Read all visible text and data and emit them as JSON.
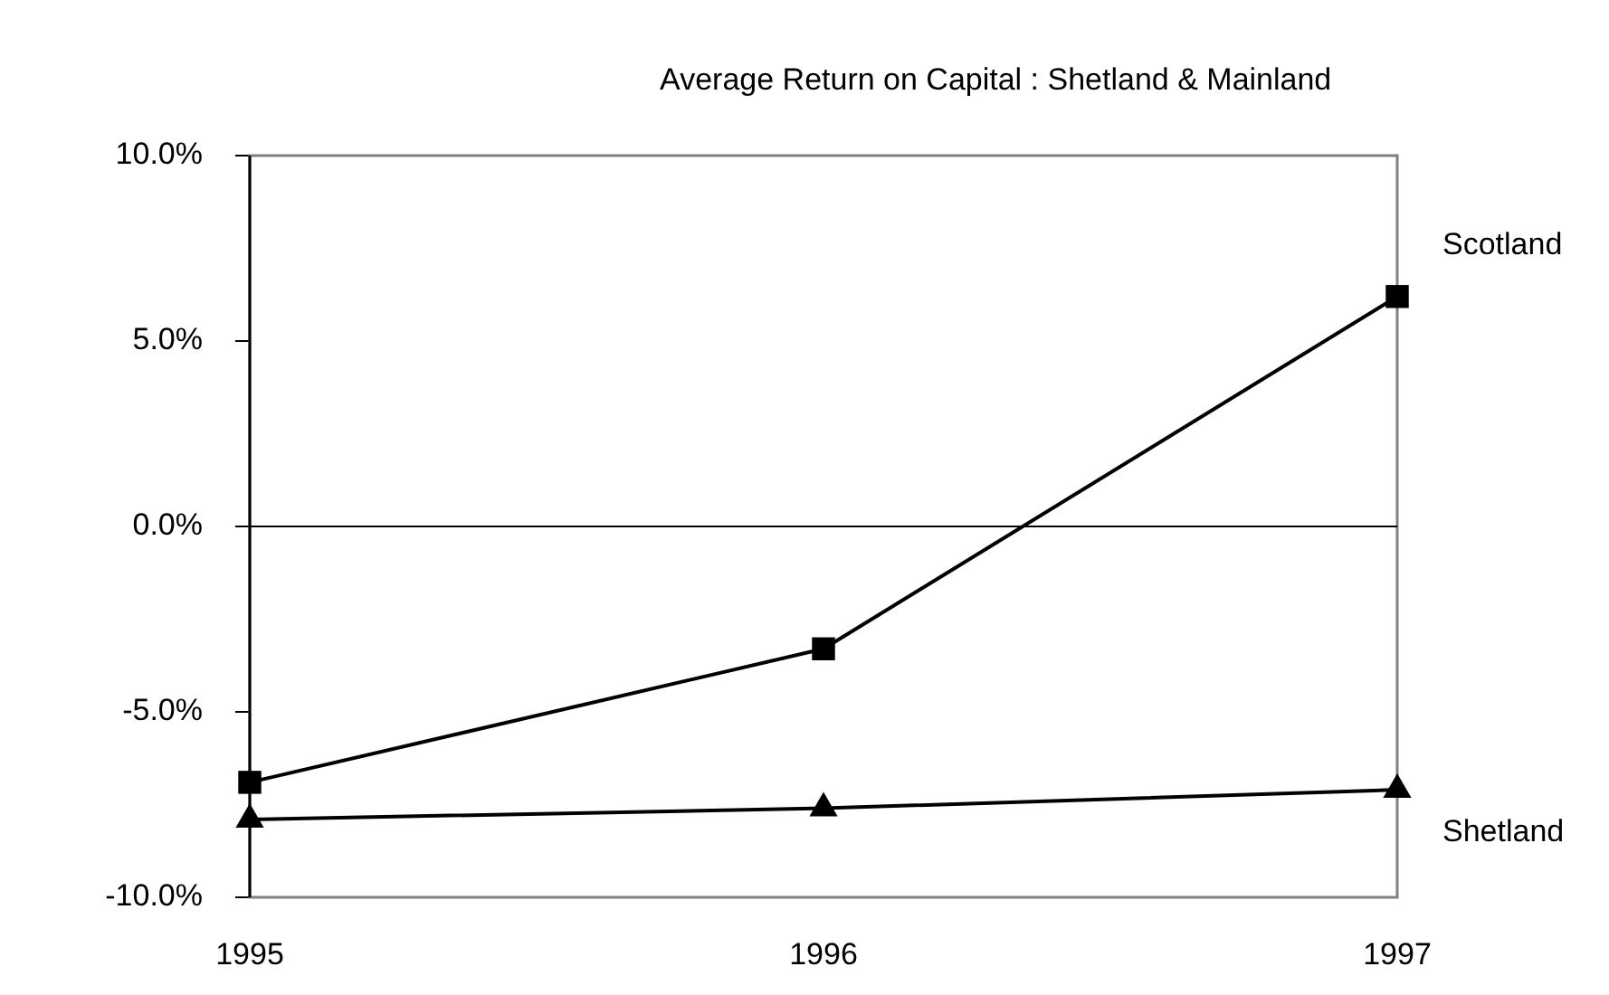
{
  "chart_data": {
    "type": "line",
    "title": "Average Return on Capital : Shetland & Mainland",
    "categories": [
      "1995",
      "1996",
      "1997"
    ],
    "series": [
      {
        "name": "Scotland",
        "color": "#000000",
        "marker": "square",
        "values": [
          -6.9,
          -3.3,
          6.2
        ]
      },
      {
        "name": "Shetland",
        "color": "#000000",
        "marker": "triangle",
        "values": [
          -7.9,
          -7.6,
          -7.1
        ]
      }
    ],
    "ylim": [
      -10,
      10
    ],
    "yticks": [
      {
        "value": -10,
        "label": "-10.0%"
      },
      {
        "value": -5,
        "label": "-5.0%"
      },
      {
        "value": 0,
        "label": "0.0%"
      },
      {
        "value": 5,
        "label": "5.0%"
      },
      {
        "value": 10,
        "label": "10.0%"
      }
    ],
    "ref_lines": [
      {
        "axis": "y",
        "value": 0,
        "color": "#000000"
      }
    ],
    "grid": false,
    "legend": false,
    "line_style": "solid"
  }
}
